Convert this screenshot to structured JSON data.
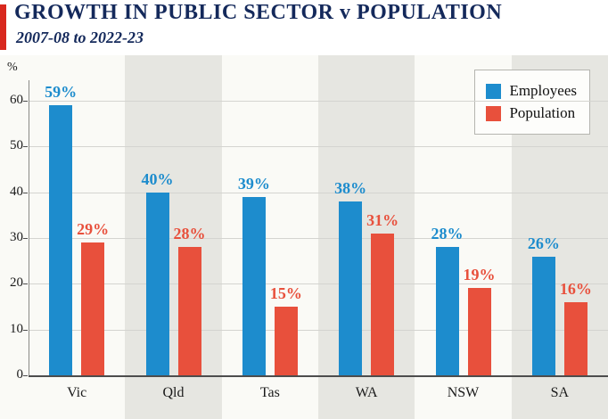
{
  "header": {
    "title": "GROWTH IN PUBLIC SECTOR v POPULATION",
    "subtitle": "2007-08 to 2022-23",
    "accent_color": "#d8281e",
    "title_color": "#14295b"
  },
  "chart_data": {
    "type": "bar",
    "title": "GROWTH IN PUBLIC SECTOR v POPULATION",
    "subtitle": "2007-08 to 2022-23",
    "categories": [
      "Vic",
      "Qld",
      "Tas",
      "WA",
      "NSW",
      "SA"
    ],
    "series": [
      {
        "name": "Employees",
        "color": "#1d8ccd",
        "values": [
          59,
          40,
          39,
          38,
          28,
          26
        ]
      },
      {
        "name": "Population",
        "color": "#e8503c",
        "values": [
          29,
          28,
          15,
          31,
          19,
          16
        ]
      }
    ],
    "value_suffix": "%",
    "ylabel": "%",
    "yticks": [
      0,
      10,
      20,
      30,
      40,
      50,
      60
    ],
    "ylim": [
      0,
      65
    ],
    "grid": true,
    "legend_position": "top-right",
    "stripe_colors": [
      "#fafaf6",
      "#e6e6e1"
    ]
  }
}
